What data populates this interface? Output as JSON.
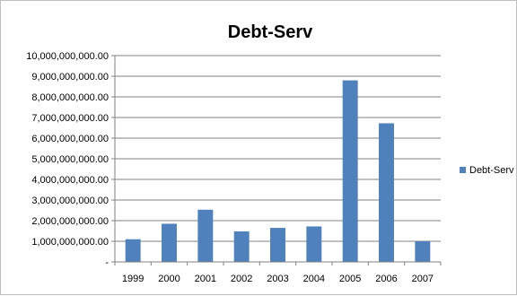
{
  "chart_data": {
    "type": "bar",
    "title": "Debt-Serv",
    "categories": [
      "1999",
      "2000",
      "2001",
      "2002",
      "2003",
      "2004",
      "2005",
      "2006",
      "2007"
    ],
    "series": [
      {
        "name": "Debt-Serv",
        "color": "#4f81bd",
        "values": [
          1100000000,
          1850000000,
          2530000000,
          1480000000,
          1650000000,
          1720000000,
          8800000000,
          6720000000,
          1000000000
        ]
      }
    ],
    "ylim": [
      0,
      10000000000
    ],
    "yticks": [
      0,
      1000000000,
      2000000000,
      3000000000,
      4000000000,
      5000000000,
      6000000000,
      7000000000,
      8000000000,
      9000000000,
      10000000000
    ],
    "ytick_labels": [
      "-",
      "1,000,000,000.00",
      "2,000,000,000.00",
      "3,000,000,000.00",
      "4,000,000,000.00",
      "5,000,000,000.00",
      "6,000,000,000.00",
      "7,000,000,000.00",
      "8,000,000,000.00",
      "9,000,000,000.00",
      "10,000,000,000.00"
    ],
    "grid": true,
    "legend": "right"
  }
}
